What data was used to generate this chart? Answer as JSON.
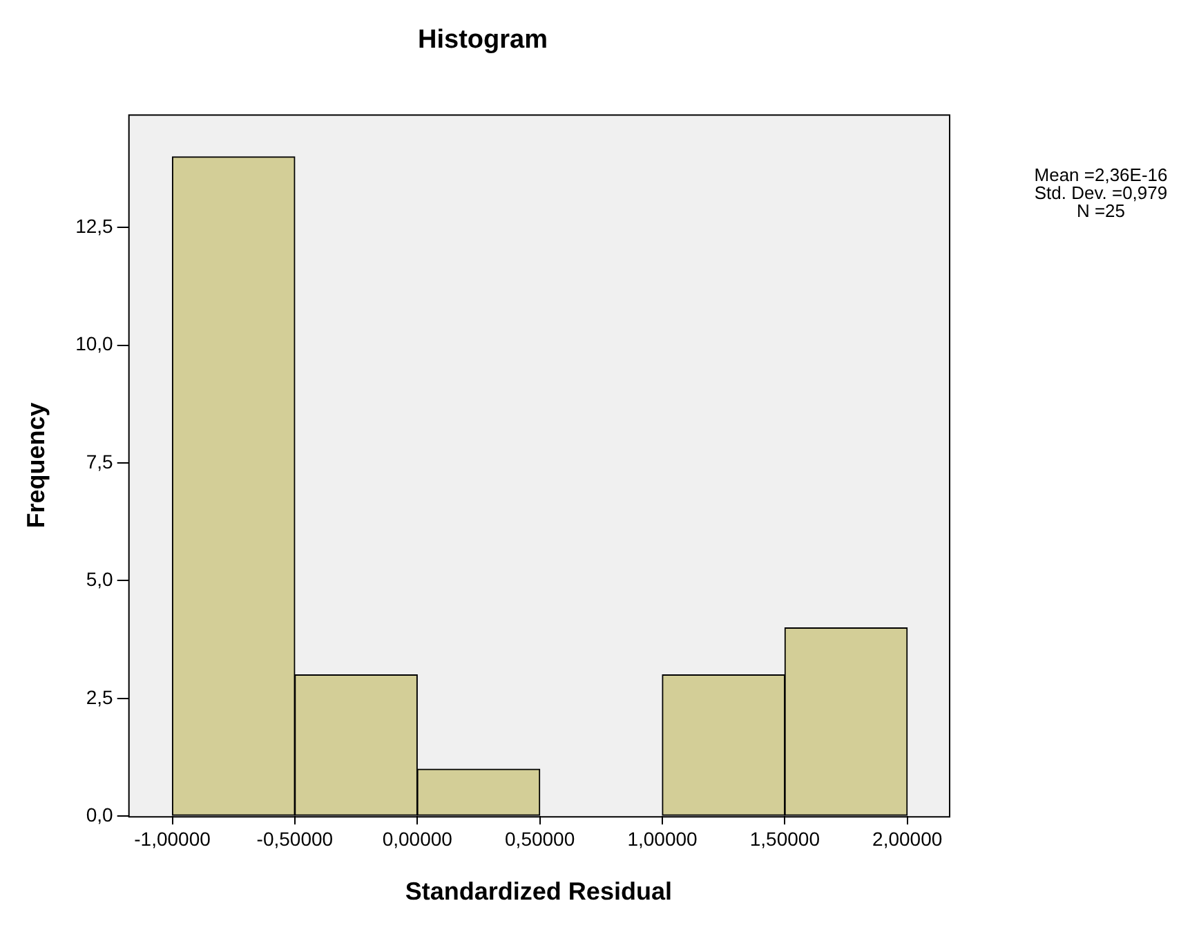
{
  "chart_data": {
    "type": "histogram",
    "title": "Histogram",
    "xlabel": "Standardized Residual",
    "ylabel": "Frequency",
    "bins": [
      -1,
      -0.5,
      0,
      0.5,
      1,
      1.5,
      2
    ],
    "values": [
      14,
      3,
      1,
      0,
      3,
      4
    ],
    "color": "#d3ce97",
    "xlim": [
      -1.18,
      2.17
    ],
    "xticks": [
      {
        "value": -1,
        "label": "-1,00000"
      },
      {
        "value": -0.5,
        "label": "-0,50000"
      },
      {
        "value": 0,
        "label": "0,00000"
      },
      {
        "value": 0.5,
        "label": "0,50000"
      },
      {
        "value": 1,
        "label": "1,00000"
      },
      {
        "value": 1.5,
        "label": "1,50000"
      },
      {
        "value": 2,
        "label": "2,00000"
      }
    ],
    "ylim": [
      0,
      14.9
    ],
    "yticks": [
      {
        "value": 0,
        "label": "0,0"
      },
      {
        "value": 2.5,
        "label": "2,5"
      },
      {
        "value": 5,
        "label": "5,0"
      },
      {
        "value": 7.5,
        "label": "7,5"
      },
      {
        "value": 10,
        "label": "10,0"
      },
      {
        "value": 12.5,
        "label": "12,5"
      }
    ],
    "annotations": [
      "Mean =2,36E-16",
      "Std. Dev. =0,979",
      "N =25"
    ],
    "grid": false,
    "legend": false
  }
}
